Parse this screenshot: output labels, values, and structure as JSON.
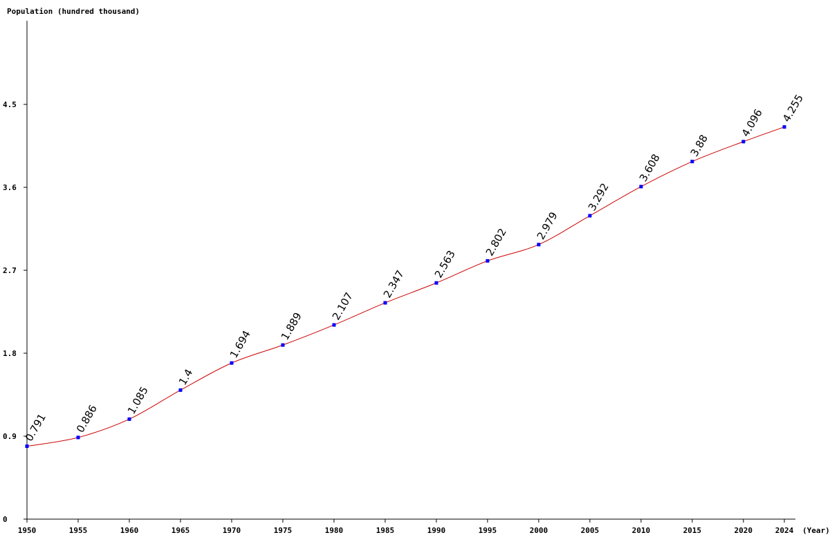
{
  "chart_data": {
    "type": "line",
    "ylabel": "Population (hundred thousand)",
    "xlabel": "(Year)",
    "x": [
      1950,
      1955,
      1960,
      1965,
      1970,
      1975,
      1980,
      1985,
      1990,
      1995,
      2000,
      2005,
      2010,
      2015,
      2020,
      2024
    ],
    "values": [
      0.791,
      0.886,
      1.085,
      1.4,
      1.694,
      1.889,
      2.107,
      2.347,
      2.563,
      2.802,
      2.979,
      3.292,
      3.608,
      3.88,
      4.096,
      4.255
    ],
    "data_labels": [
      "0.791",
      "0.886",
      "1.085",
      "1.4",
      "1.694",
      "1.889",
      "2.107",
      "2.347",
      "2.563",
      "2.802",
      "2.979",
      "3.292",
      "3.608",
      "3.88",
      "4.096",
      "4.255"
    ],
    "x_ticks": [
      "1950",
      "1955",
      "1960",
      "1965",
      "1970",
      "1975",
      "1980",
      "1985",
      "1990",
      "1995",
      "2000",
      "2005",
      "2010",
      "2015",
      "2020",
      "2024"
    ],
    "y_ticks": [
      0,
      0.9,
      1.8,
      2.7,
      3.6,
      4.5
    ],
    "y_tick_labels": [
      "0",
      "0.9",
      "1.8",
      "2.7",
      "3.6",
      "4.5"
    ],
    "ylim": [
      0,
      5.4
    ],
    "xlim": [
      1950,
      2024
    ],
    "grid": false,
    "legend": "none",
    "line_color": "#cc0000",
    "marker_color": "#0000ff"
  }
}
